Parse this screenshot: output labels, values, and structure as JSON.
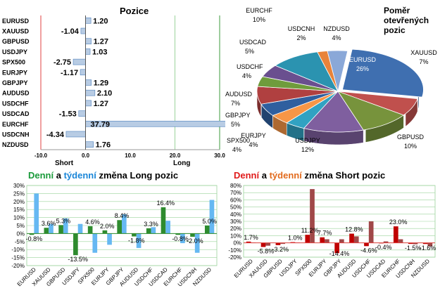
{
  "positions": {
    "title": "Pozice",
    "short_label": "Short",
    "long_label": "Long",
    "chart_data": {
      "type": "bar",
      "orientation": "horizontal",
      "categories": [
        "EURUSD",
        "XAUUSD",
        "GBPUSD",
        "USDJPY",
        "SPX500",
        "EURJPY",
        "GBPJPY",
        "AUDUSD",
        "USDCHF",
        "USDCAD",
        "EURCHF",
        "USDCNH",
        "NZDUSD"
      ],
      "values": [
        1.2,
        -1.04,
        1.27,
        1.03,
        -2.75,
        -1.17,
        1.29,
        2.1,
        1.27,
        -1.53,
        37.79,
        -4.34,
        1.76
      ],
      "value_labels": [
        "1.20",
        "-1.04",
        "1.27",
        "1.03",
        "-2.75",
        "-1.17",
        "1.29",
        "2.10",
        "1.27",
        "-1.53",
        "37.79",
        "-4.34",
        "1.76"
      ],
      "xlim": [
        -10,
        30
      ],
      "xticks": [
        "-10.0",
        "0.0",
        "10.0",
        "20.0",
        "30.0"
      ],
      "grid": "vertical",
      "colors": {
        "bar": "#b8cce4",
        "bar_stroke": "#4f81bd",
        "short_line": "#e04040",
        "long_line": "#3c9b3c",
        "grid": "#9bd39b"
      }
    }
  },
  "ratio": {
    "title_lines": [
      "Poměr",
      "otevřených",
      "pozic"
    ],
    "chart_data": {
      "type": "pie",
      "slices": [
        {
          "label": "EURUSD",
          "value": 26,
          "text": "26%",
          "color": "#3f6fb0"
        },
        {
          "label": "XAUUSD",
          "value": 7,
          "text": "7%",
          "color": "#c0504d"
        },
        {
          "label": "GBPUSD",
          "value": 10,
          "text": "10%",
          "color": "#77933c"
        },
        {
          "label": "USDJPY",
          "value": 12,
          "text": "12%",
          "color": "#7f5f9f"
        },
        {
          "label": "EURJPY",
          "value": 4,
          "text": "4%",
          "color": "#31a2c2"
        },
        {
          "label": "SPX500",
          "value": 4,
          "text": "4%",
          "color": "#f79646"
        },
        {
          "label": "GBPJPY",
          "value": 5,
          "text": "5%",
          "color": "#2f5f9f"
        },
        {
          "label": "AUDUSD",
          "value": 7,
          "text": "7%",
          "color": "#b04040"
        },
        {
          "label": "USDCHF",
          "value": 4,
          "text": "4%",
          "color": "#6f9c3c"
        },
        {
          "label": "USDCAD",
          "value": 5,
          "text": "5%",
          "color": "#6a4f8f"
        },
        {
          "label": "EURCHF",
          "value": 10,
          "text": "10%",
          "color": "#2b93b0"
        },
        {
          "label": "USDCNH",
          "value": 2,
          "text": "2%",
          "color": "#e8833a"
        },
        {
          "label": "NZDUSD",
          "value": 4,
          "text": "4%",
          "color": "#8aa8d8"
        }
      ]
    }
  },
  "long_change": {
    "title": {
      "w1": "Denní",
      "w2": " a ",
      "w3": "týdenní",
      "w4": " změna Long pozic"
    },
    "chart_data": {
      "type": "bar",
      "categories": [
        "EURUSD",
        "XAUUSD",
        "GBPUSD",
        "USDJPY",
        "SPX500",
        "EURJPY",
        "GBPJPY",
        "AUDUSD",
        "USDCHF",
        "USDCAD",
        "EURCHF",
        "USDCNH",
        "NZDUSD"
      ],
      "series": [
        {
          "values": [
            -0.8,
            3.6,
            5.3,
            -13.5,
            4.6,
            2.0,
            8.4,
            -1.8,
            3.3,
            16.4,
            -0.8,
            -2.0,
            5.0
          ],
          "color": "#2e8b2e"
        },
        {
          "values": [
            25.0,
            6.0,
            9.5,
            6.0,
            -12.0,
            -7.0,
            12.0,
            -9.0,
            4.0,
            8.0,
            -6.0,
            -12.0,
            21.0
          ],
          "color": "#66b8f2"
        }
      ],
      "data_labels": [
        "-0.8%",
        "3.6%",
        "5.3%",
        "-13.5%",
        "4.6%",
        "2.0%",
        "8.4%",
        "-1.8%",
        "3.3%",
        "16.4%",
        "-0.8%",
        "-2.0%",
        "5.0%"
      ],
      "ylim": [
        -20,
        30
      ],
      "yticks": [
        "30%",
        "25%",
        "20%",
        "15%",
        "10%",
        "5%",
        "0%",
        "-5%",
        "-10%",
        "-15%",
        "-20%"
      ],
      "grid": "horizontal"
    }
  },
  "short_change": {
    "title": {
      "w1": "Denní",
      "w2": " a ",
      "w3": "týdenní",
      "w4": " změna Short pozic"
    },
    "chart_data": {
      "type": "bar",
      "categories": [
        "EURUSD",
        "XAUUSD",
        "GBPUSD",
        "USDJPY",
        "SPX500",
        "EURJPY",
        "GBPJPY",
        "AUDUSD",
        "USDCHF",
        "USDCAD",
        "EURCHF",
        "USDCNH",
        "NZDUSD"
      ],
      "series": [
        {
          "values": [
            1.7,
            -5.8,
            -3.2,
            1.0,
            11.2,
            7.7,
            -14.4,
            12.8,
            -4.6,
            -0.4,
            23.0,
            -1.5,
            -1.6
          ],
          "color": "#c00000"
        },
        {
          "values": [
            0.5,
            -4.0,
            -1.5,
            0.5,
            75.0,
            5.0,
            5.0,
            9.0,
            30.0,
            2.0,
            5.0,
            -2.0,
            -5.0
          ],
          "color": "#a04848"
        }
      ],
      "data_labels": [
        "1.7%",
        "-5.8%",
        "-3.2%",
        "1.0%",
        "11.2%",
        "7.7%",
        "-14.4%",
        "12.8%",
        "-4.6%",
        "-0.4%",
        "23.0%",
        "-1.5%",
        "-1.6%"
      ],
      "ylim": [
        -20,
        80
      ],
      "yticks": [
        "80%",
        "70%",
        "60%",
        "50%",
        "40%",
        "30%",
        "20%",
        "10%",
        "0%",
        "-10%",
        "-20%"
      ],
      "grid": "horizontal"
    }
  }
}
